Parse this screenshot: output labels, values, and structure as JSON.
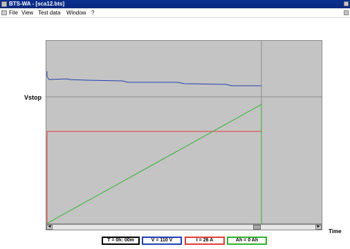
{
  "window": {
    "title": "BTS-WA - [sca12.bts]",
    "menu": [
      {
        "label": "File"
      },
      {
        "label": "View"
      },
      {
        "label": "Test data"
      },
      {
        "label": "Window"
      },
      {
        "label": "?"
      }
    ]
  },
  "plot": {
    "y_marker_label": "Vstop",
    "x_axis_label": "Time",
    "background_color": "#c4c4c4",
    "series_colors": {
      "voltage": "#1f3fb0",
      "current": "#e03a3a",
      "charge": "#2fb02f",
      "cursor": "#8c8c8c"
    }
  },
  "scrollbar": {
    "left_arrow": "◄",
    "right_arrow": "►"
  },
  "status": {
    "time": {
      "text": "T = 0h: 00m",
      "border_color": "#000000"
    },
    "voltage": {
      "text": "V = 110 V",
      "border_color": "#1f3fb0"
    },
    "current": {
      "text": "I = 26 A",
      "border_color": "#e03a3a"
    },
    "charge": {
      "text": "Ah = 0 Ah",
      "border_color": "#2fb02f"
    }
  }
}
